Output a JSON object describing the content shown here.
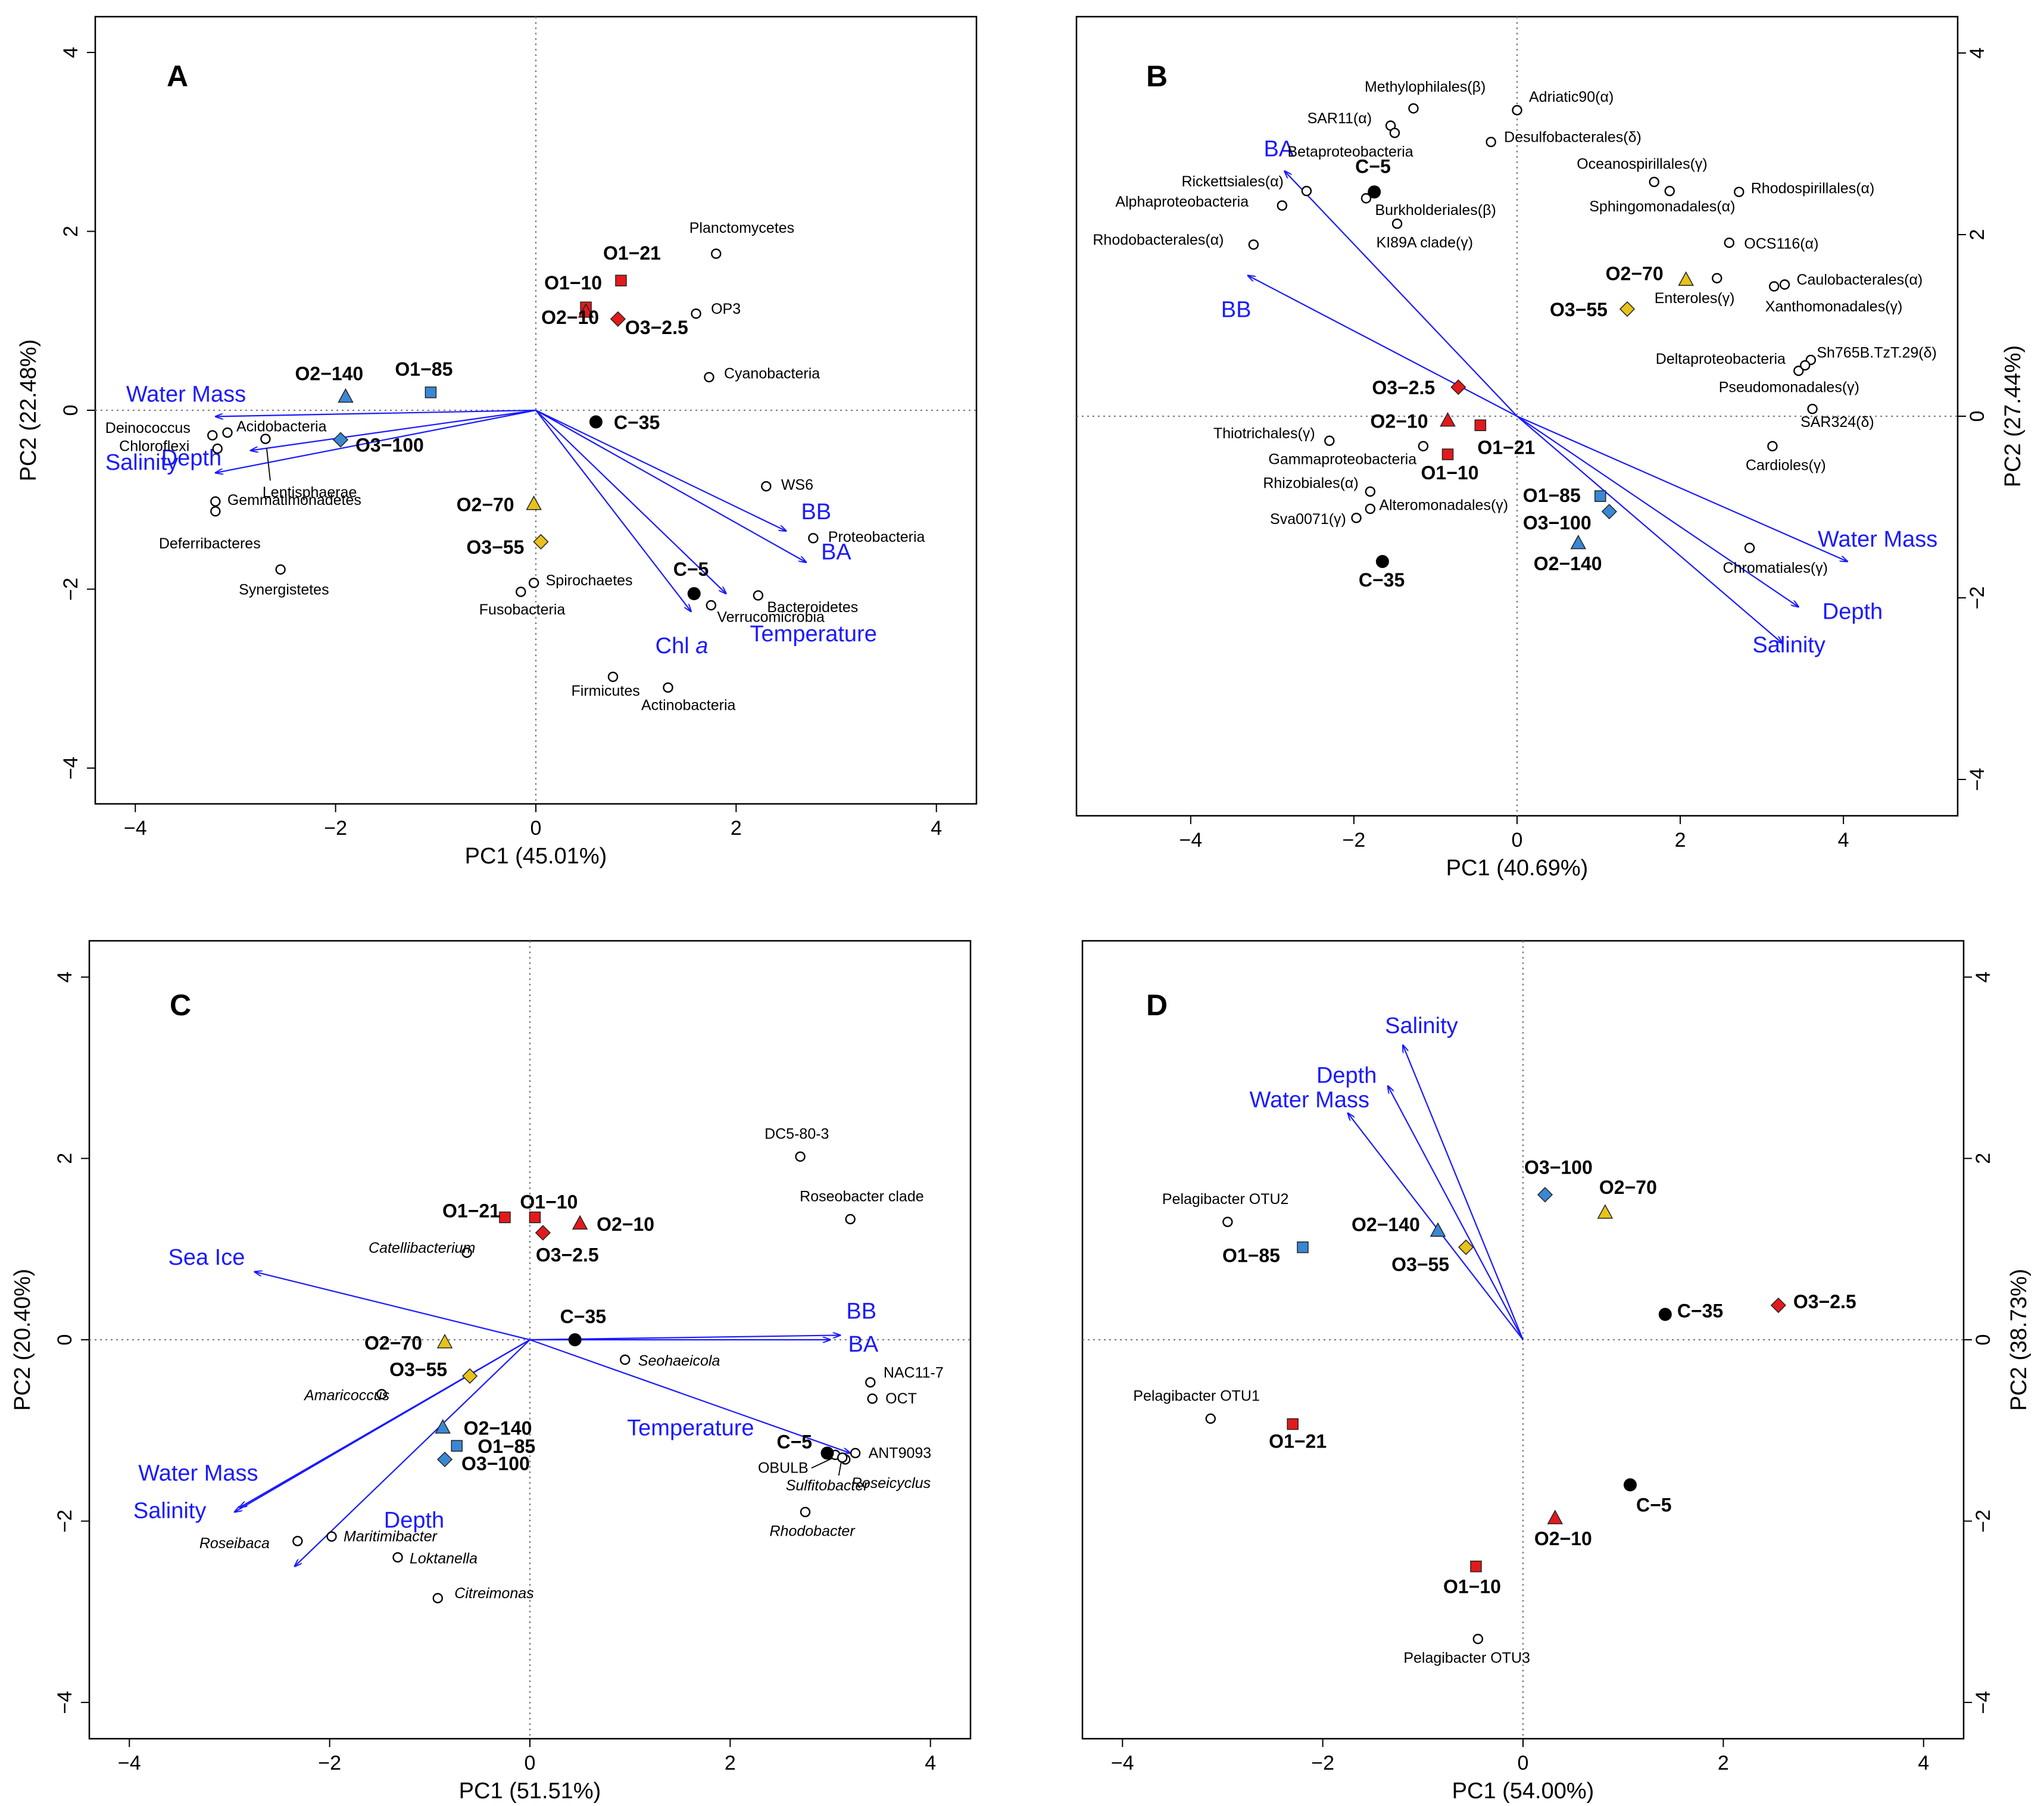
{
  "chart_data": [
    {
      "type": "scatter",
      "panel": "A",
      "xlabel": "PC1   (45.01%)",
      "ylabel": "PC2   (22.48%)",
      "xlim": [
        -4.4,
        4.4
      ],
      "ylim": [
        -4.4,
        4.4
      ],
      "xticks": [
        -4,
        -2,
        0,
        2,
        4
      ],
      "yticks": [
        -4,
        -2,
        0,
        2,
        4
      ],
      "vectors": [
        {
          "name": "Water Mass",
          "x": -3.2,
          "y": -0.07
        },
        {
          "name": "Salinity",
          "x": -3.2,
          "y": -0.7
        },
        {
          "name": "Depth",
          "x": -2.85,
          "y": -0.45
        },
        {
          "name": "BB",
          "x": 2.5,
          "y": -1.35
        },
        {
          "name": "BA",
          "x": 2.7,
          "y": -1.7
        },
        {
          "name": "Chl a",
          "x": 1.55,
          "y": -2.25
        },
        {
          "name": "Temperature",
          "x": 1.9,
          "y": -2.05
        }
      ],
      "samples": [
        {
          "name": "O1−21",
          "x": 0.85,
          "y": 1.45
        },
        {
          "name": "O1−10",
          "x": 0.5,
          "y": 1.15
        },
        {
          "name": "O2−10",
          "x": 0.5,
          "y": 1.1
        },
        {
          "name": "O3−2.5",
          "x": 0.82,
          "y": 1.02
        },
        {
          "name": "O2−140",
          "x": -1.9,
          "y": 0.15
        },
        {
          "name": "O1−85",
          "x": -1.05,
          "y": 0.2
        },
        {
          "name": "O3−100",
          "x": -1.95,
          "y": -0.33
        },
        {
          "name": "C−35",
          "x": 0.6,
          "y": -0.13
        },
        {
          "name": "O2−70",
          "x": -0.02,
          "y": -1.05
        },
        {
          "name": "O3−55",
          "x": 0.05,
          "y": -1.47
        },
        {
          "name": "C−5",
          "x": 1.58,
          "y": -2.05
        }
      ],
      "taxa": [
        {
          "name": "Planctomycetes",
          "x": 1.8,
          "y": 1.75
        },
        {
          "name": "OP3",
          "x": 1.6,
          "y": 1.08
        },
        {
          "name": "Cyanobacteria",
          "x": 1.73,
          "y": 0.37
        },
        {
          "name": "Deinococcus",
          "x": -3.23,
          "y": -0.28
        },
        {
          "name": "Acidobacteria",
          "x": -3.08,
          "y": -0.25
        },
        {
          "name": "Chloroflexi",
          "x": -3.18,
          "y": -0.43
        },
        {
          "name": "Lentisphaerae",
          "x": -2.7,
          "y": -0.32
        },
        {
          "name": "Gemmatimonadetes",
          "x": -3.2,
          "y": -1.02
        },
        {
          "name": "Deferribacteres",
          "x": -3.2,
          "y": -1.13
        },
        {
          "name": "Synergistetes",
          "x": -2.55,
          "y": -1.78
        },
        {
          "name": "WS6",
          "x": 2.3,
          "y": -0.85
        },
        {
          "name": "Proteobacteria",
          "x": 2.77,
          "y": -1.43
        },
        {
          "name": "Spirochaetes",
          "x": -0.02,
          "y": -1.93
        },
        {
          "name": "Fusobacteria",
          "x": -0.15,
          "y": -2.03
        },
        {
          "name": "Bacteroidetes",
          "x": 2.22,
          "y": -2.07
        },
        {
          "name": "Verrucomicrobia",
          "x": 1.75,
          "y": -2.18
        },
        {
          "name": "Firmicutes",
          "x": 0.77,
          "y": -2.98
        },
        {
          "name": "Actinobacteria",
          "x": 1.32,
          "y": -3.1
        }
      ]
    },
    {
      "type": "scatter",
      "panel": "B",
      "xlabel": "PC1   (40.69%)",
      "ylabel": "PC2   (27.44%)",
      "xlim": [
        -5.4,
        5.4
      ],
      "ylim": [
        -4.4,
        4.4
      ],
      "xticks": [
        -4,
        -2,
        0,
        2,
        4
      ],
      "yticks": [
        -4,
        -2,
        0,
        2,
        4
      ],
      "vectors": [
        {
          "name": "BA",
          "x": -2.85,
          "y": 2.7
        },
        {
          "name": "BB",
          "x": -3.3,
          "y": 1.55
        },
        {
          "name": "Water Mass",
          "x": 4.05,
          "y": -1.6
        },
        {
          "name": "Depth",
          "x": 3.45,
          "y": -2.1
        },
        {
          "name": "Salinity",
          "x": 3.25,
          "y": -2.5
        }
      ],
      "samples": [
        {
          "name": "C−5",
          "x": -1.75,
          "y": 2.47
        },
        {
          "name": "O2−70",
          "x": 2.07,
          "y": 1.5
        },
        {
          "name": "O3−55",
          "x": 1.35,
          "y": 1.18
        },
        {
          "name": "O3−2.5",
          "x": -0.72,
          "y": 0.32
        },
        {
          "name": "O2−10",
          "x": -0.85,
          "y": -0.05
        },
        {
          "name": "O1−21",
          "x": -0.45,
          "y": -0.1
        },
        {
          "name": "O1−10",
          "x": -0.85,
          "y": -0.42
        },
        {
          "name": "O1−85",
          "x": 1.02,
          "y": -0.88
        },
        {
          "name": "O3−100",
          "x": 1.13,
          "y": -1.05
        },
        {
          "name": "O2−140",
          "x": 0.75,
          "y": -1.4
        },
        {
          "name": "C−35",
          "x": -1.65,
          "y": -1.6
        }
      ],
      "taxa": [
        {
          "name": "Methylophilales(β)",
          "x": -1.27,
          "y": 3.39
        },
        {
          "name": "Adriatic90(α)",
          "x": 0.0,
          "y": 3.37
        },
        {
          "name": "SAR11(α)",
          "x": -1.55,
          "y": 3.2
        },
        {
          "name": "Betaproteobacteria",
          "x": -1.5,
          "y": 3.12
        },
        {
          "name": "Desulfobacterales(δ)",
          "x": -0.32,
          "y": 3.02
        },
        {
          "name": "Rickettsiales(α)",
          "x": -2.58,
          "y": 2.48
        },
        {
          "name": "Alphaproteobacteria",
          "x": -2.88,
          "y": 2.32
        },
        {
          "name": "Burkholderiales(β)",
          "x": -1.85,
          "y": 2.4
        },
        {
          "name": "KI89A clade(γ)",
          "x": -1.47,
          "y": 2.12
        },
        {
          "name": "Rhodobacterales(α)",
          "x": -3.23,
          "y": 1.89
        },
        {
          "name": "Oceanospirillales(γ)",
          "x": 1.68,
          "y": 2.58
        },
        {
          "name": "Sphingomonadales(α)",
          "x": 1.87,
          "y": 2.48
        },
        {
          "name": "Rhodospirillales(α)",
          "x": 2.72,
          "y": 2.47
        },
        {
          "name": "OCS116(α)",
          "x": 2.6,
          "y": 1.91
        },
        {
          "name": "Enteroles(γ)",
          "x": 2.45,
          "y": 1.52
        },
        {
          "name": "Caulobacterales(α)",
          "x": 3.28,
          "y": 1.45
        },
        {
          "name": "Xanthomonadales(γ)",
          "x": 3.15,
          "y": 1.43
        },
        {
          "name": "Sh765B.TzT.29(δ)",
          "x": 3.6,
          "y": 0.62
        },
        {
          "name": "Deltaproteobacteria",
          "x": 3.45,
          "y": 0.5
        },
        {
          "name": "Pseudomonadales(γ)",
          "x": 3.53,
          "y": 0.56
        },
        {
          "name": "SAR324(δ)",
          "x": 3.62,
          "y": 0.08
        },
        {
          "name": "Cardioles(γ)",
          "x": 3.13,
          "y": -0.33
        },
        {
          "name": "Thiotrichales(γ)",
          "x": -2.3,
          "y": -0.27
        },
        {
          "name": "Gammaproteobacteria",
          "x": -1.15,
          "y": -0.33
        },
        {
          "name": "Rhizobiales(α)",
          "x": -1.8,
          "y": -0.83
        },
        {
          "name": "Alteromonadales(γ)",
          "x": -1.8,
          "y": -1.02
        },
        {
          "name": "Sva0071(γ)",
          "x": -1.97,
          "y": -1.12
        },
        {
          "name": "Chromatiales(γ)",
          "x": 2.85,
          "y": -1.45
        }
      ]
    },
    {
      "type": "scatter",
      "panel": "C",
      "xlabel": "PC1   (51.51%)",
      "ylabel": "PC2   (20.40%)",
      "xlim": [
        -4.4,
        4.4
      ],
      "ylim": [
        -4.4,
        4.4
      ],
      "xticks": [
        -4,
        -2,
        0,
        2,
        4
      ],
      "yticks": [
        -4,
        -2,
        0,
        2,
        4
      ],
      "vectors": [
        {
          "name": "Sea Ice",
          "x": -2.75,
          "y": 0.75
        },
        {
          "name": "BB",
          "x": 3.1,
          "y": 0.05
        },
        {
          "name": "BA",
          "x": 3.0,
          "y": 0.0
        },
        {
          "name": "Temperature",
          "x": 3.2,
          "y": -1.25
        },
        {
          "name": "Water Mass",
          "x": -2.9,
          "y": -1.85
        },
        {
          "name": "Salinity",
          "x": -2.95,
          "y": -1.9
        },
        {
          "name": "Depth",
          "x": -2.35,
          "y": -2.5
        }
      ],
      "samples": [
        {
          "name": "O1−21",
          "x": -0.25,
          "y": 1.35
        },
        {
          "name": "O1−10",
          "x": 0.05,
          "y": 1.35
        },
        {
          "name": "O2−10",
          "x": 0.5,
          "y": 1.28
        },
        {
          "name": "O3−2.5",
          "x": 0.13,
          "y": 1.18
        },
        {
          "name": "C−35",
          "x": 0.45,
          "y": 0.0
        },
        {
          "name": "O2−70",
          "x": -0.85,
          "y": -0.03
        },
        {
          "name": "O3−55",
          "x": -0.6,
          "y": -0.4
        },
        {
          "name": "O2−140",
          "x": -0.87,
          "y": -0.97
        },
        {
          "name": "O1−85",
          "x": -0.73,
          "y": -1.17
        },
        {
          "name": "O3−100",
          "x": -0.85,
          "y": -1.32
        },
        {
          "name": "C−5",
          "x": 2.97,
          "y": -1.25
        }
      ],
      "taxa": [
        {
          "name": "DC5-80-3",
          "x": 2.7,
          "y": 2.02,
          "italic": false
        },
        {
          "name": "Roseobacter clade",
          "x": 3.2,
          "y": 1.33,
          "italic": false
        },
        {
          "name": "Catellibacterium",
          "x": -0.63,
          "y": 0.96,
          "italic": true
        },
        {
          "name": "Seohaeicola",
          "x": 0.95,
          "y": -0.22,
          "italic": true
        },
        {
          "name": "Amaricoccus",
          "x": -1.48,
          "y": -0.6,
          "italic": true
        },
        {
          "name": "NAC11-7",
          "x": 3.4,
          "y": -0.47,
          "italic": false
        },
        {
          "name": "OCT",
          "x": 3.42,
          "y": -0.65,
          "italic": false
        },
        {
          "name": "ANT9093",
          "x": 3.25,
          "y": -1.25,
          "italic": false
        },
        {
          "name": "OBULB",
          "x": 3.05,
          "y": -1.27,
          "italic": false
        },
        {
          "name": "Roseicyclus",
          "x": 3.15,
          "y": -1.32,
          "italic": true
        },
        {
          "name": "Sulfitobacter",
          "x": 3.12,
          "y": -1.3,
          "italic": true
        },
        {
          "name": "Rhodobacter",
          "x": 2.75,
          "y": -1.9,
          "italic": true
        },
        {
          "name": "Roseibaca",
          "x": -2.32,
          "y": -2.22,
          "italic": true
        },
        {
          "name": "Maritimibacter",
          "x": -1.98,
          "y": -2.17,
          "italic": true
        },
        {
          "name": "Loktanella",
          "x": -1.32,
          "y": -2.4,
          "italic": true
        },
        {
          "name": "Citreimonas",
          "x": -0.92,
          "y": -2.85,
          "italic": true
        }
      ]
    },
    {
      "type": "scatter",
      "panel": "D",
      "xlabel": "PC1   (54.00%)",
      "ylabel": "PC2   (38.73%)",
      "xlim": [
        -4.4,
        4.4
      ],
      "ylim": [
        -4.4,
        4.4
      ],
      "xticks": [
        -4,
        -2,
        0,
        2,
        4
      ],
      "yticks": [
        -4,
        -2,
        0,
        2,
        4
      ],
      "vectors": [
        {
          "name": "Salinity",
          "x": -1.2,
          "y": 3.25
        },
        {
          "name": "Depth",
          "x": -1.35,
          "y": 2.8
        },
        {
          "name": "Water Mass",
          "x": -1.75,
          "y": 2.5
        }
      ],
      "samples": [
        {
          "name": "O3−100",
          "x": 0.22,
          "y": 1.6
        },
        {
          "name": "O2−70",
          "x": 0.82,
          "y": 1.4
        },
        {
          "name": "O2−140",
          "x": -0.85,
          "y": 1.2
        },
        {
          "name": "O3−55",
          "x": -0.57,
          "y": 1.02
        },
        {
          "name": "O1−85",
          "x": -2.2,
          "y": 1.02
        },
        {
          "name": "C−35",
          "x": 1.42,
          "y": 0.28
        },
        {
          "name": "O3−2.5",
          "x": 2.55,
          "y": 0.38
        },
        {
          "name": "O1−21",
          "x": -2.3,
          "y": -0.93
        },
        {
          "name": "C−5",
          "x": 1.07,
          "y": -1.6
        },
        {
          "name": "O2−10",
          "x": 0.32,
          "y": -1.97
        },
        {
          "name": "O1−10",
          "x": -0.47,
          "y": -2.5
        }
      ],
      "taxa": [
        {
          "name": "Pelagibacter OTU2",
          "x": -2.95,
          "y": 1.3
        },
        {
          "name": "Pelagibacter OTU1",
          "x": -3.12,
          "y": -0.87
        },
        {
          "name": "Pelagibacter OTU3",
          "x": -0.45,
          "y": -3.3
        }
      ]
    }
  ],
  "panel_letters": [
    "A",
    "B",
    "C",
    "D"
  ],
  "colors": {
    "vector": "#1a1aff",
    "O1": "#e31a1c",
    "surface": "#e31a1c",
    "deep": "#3a87d4",
    "mid": "#e8c21a",
    "coastal": "#000000"
  }
}
